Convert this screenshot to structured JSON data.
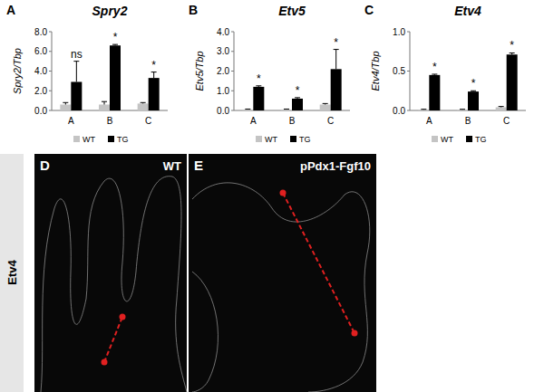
{
  "chart_data": [
    {
      "type": "bar",
      "panel_label": "A",
      "title": "Spry2",
      "y_label": "Spry2/Tbp",
      "categories": [
        "A",
        "B",
        "C"
      ],
      "series": [
        {
          "name": "WT",
          "color": "#c4c4c4",
          "values": [
            0.6,
            0.6,
            0.7
          ],
          "errors": [
            0.2,
            0.3,
            0.1
          ]
        },
        {
          "name": "TG",
          "color": "#000000",
          "values": [
            2.9,
            6.6,
            3.3
          ],
          "errors": [
            2.1,
            0.1,
            0.6
          ],
          "annotations": [
            "ns",
            "*",
            "*"
          ]
        }
      ],
      "ylim": [
        0,
        8
      ],
      "yticks": [
        {
          "value": 0,
          "label": "0.0"
        },
        {
          "value": 2,
          "label": "2.0"
        },
        {
          "value": 4,
          "label": "4.0"
        },
        {
          "value": 6,
          "label": "6.0"
        },
        {
          "value": 8,
          "label": "8.0"
        }
      ],
      "legend": "bottom"
    },
    {
      "type": "bar",
      "panel_label": "B",
      "title": "Etv5",
      "y_label": "Etv5/Tbp",
      "categories": [
        "A",
        "B",
        "C"
      ],
      "series": [
        {
          "name": "WT",
          "color": "#c4c4c4",
          "values": [
            0.05,
            0.05,
            0.3
          ],
          "errors": [
            0.02,
            0.02,
            0.05
          ]
        },
        {
          "name": "TG",
          "color": "#000000",
          "values": [
            1.2,
            0.6,
            2.1
          ],
          "errors": [
            0.05,
            0.05,
            1.0
          ],
          "annotations": [
            "*",
            "*",
            "*"
          ]
        }
      ],
      "ylim": [
        0,
        4
      ],
      "yticks": [
        {
          "value": 0,
          "label": "0.0"
        },
        {
          "value": 1,
          "label": "1.0"
        },
        {
          "value": 2,
          "label": "2.0"
        },
        {
          "value": 3,
          "label": "3.0"
        },
        {
          "value": 4,
          "label": "4.0"
        }
      ],
      "legend": "bottom"
    },
    {
      "type": "bar",
      "panel_label": "C",
      "title": "Etv4",
      "y_label": "Etv4/Tbp",
      "categories": [
        "A",
        "B",
        "C"
      ],
      "series": [
        {
          "name": "WT",
          "color": "#c4c4c4",
          "values": [
            0.01,
            0.01,
            0.04
          ],
          "errors": [
            0.005,
            0.005,
            0.01
          ]
        },
        {
          "name": "TG",
          "color": "#000000",
          "values": [
            0.45,
            0.24,
            0.71
          ],
          "errors": [
            0.01,
            0.01,
            0.02
          ],
          "annotations": [
            "*",
            "*",
            "*"
          ]
        }
      ],
      "ylim": [
        0,
        1
      ],
      "yticks": [
        {
          "value": 0,
          "label": "0.0"
        },
        {
          "value": 0.5,
          "label": "0.5"
        },
        {
          "value": 1,
          "label": "1.0"
        }
      ],
      "legend": "bottom"
    }
  ],
  "row_label": "Etv4",
  "images": [
    {
      "panel_label": "D",
      "label": "WT"
    },
    {
      "panel_label": "E",
      "label": "pPdx1-Fgf10"
    }
  ]
}
